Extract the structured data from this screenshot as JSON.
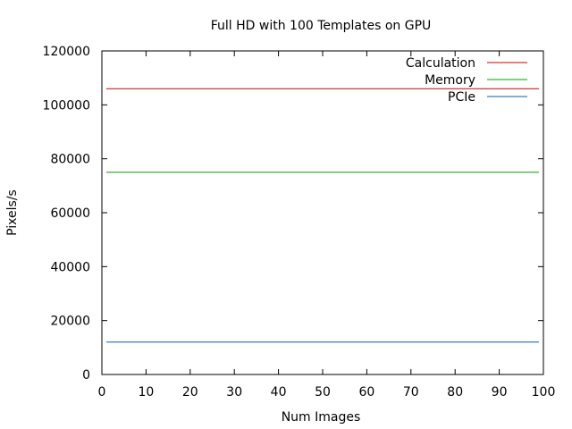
{
  "chart_data": {
    "type": "line",
    "title": "Full HD with 100 Templates on GPU",
    "xlabel": "Num Images",
    "ylabel": "Pixels/s",
    "xlim": [
      0,
      100
    ],
    "ylim": [
      0,
      120000
    ],
    "x_ticks": [
      0,
      10,
      20,
      30,
      40,
      50,
      60,
      70,
      80,
      90,
      100
    ],
    "y_ticks": [
      0,
      20000,
      40000,
      60000,
      80000,
      100000,
      120000
    ],
    "x_tick_labels": [
      "0",
      "10",
      "20",
      "30",
      "40",
      "50",
      "60",
      "70",
      "80",
      "90",
      "100"
    ],
    "y_tick_labels": [
      "0",
      "20000",
      "40000",
      "60000",
      "80000",
      "100000",
      "120000"
    ],
    "grid": false,
    "legend_position": "top-right",
    "series": [
      {
        "name": "Calculation",
        "color": "#cc0000",
        "x": [
          1,
          99
        ],
        "y": [
          106000,
          106000
        ]
      },
      {
        "name": "Memory",
        "color": "#00a000",
        "x": [
          1,
          99
        ],
        "y": [
          75000,
          75000
        ]
      },
      {
        "name": "PCIe",
        "color": "#0060ad",
        "x": [
          1,
          99
        ],
        "y": [
          12000,
          12000
        ]
      }
    ]
  }
}
